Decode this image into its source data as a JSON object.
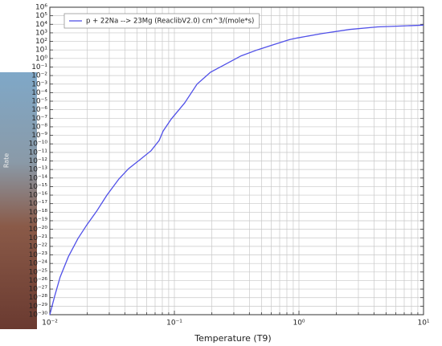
{
  "chart_data": {
    "type": "line",
    "xlabel": "Temperature (T9)",
    "ylabel": "Rate",
    "xlog": true,
    "ylog": true,
    "grid": true,
    "legend": "upper left",
    "xlim": [
      0.01,
      10
    ],
    "ylim": [
      1e-30,
      1000000.0
    ],
    "xticks": [
      {
        "value": 0.01,
        "label": "10⁻²"
      },
      {
        "value": 0.1,
        "label": "10⁻¹"
      },
      {
        "value": 1,
        "label": "10⁰"
      },
      {
        "value": 10,
        "label": "10¹"
      }
    ],
    "yticks": [
      {
        "value": 1e-30,
        "label": "10⁻³⁰"
      },
      {
        "value": 1e-29,
        "label": "10⁻²⁹"
      },
      {
        "value": 1e-28,
        "label": "10⁻²⁸"
      },
      {
        "value": 1e-27,
        "label": "10⁻²⁷"
      },
      {
        "value": 1e-26,
        "label": "10⁻²⁶"
      },
      {
        "value": 1e-25,
        "label": "10⁻²⁵"
      },
      {
        "value": 1e-24,
        "label": "10⁻²⁴"
      },
      {
        "value": 1e-23,
        "label": "10⁻²³"
      },
      {
        "value": 1e-22,
        "label": "10⁻²²"
      },
      {
        "value": 1e-21,
        "label": "10⁻²¹"
      },
      {
        "value": 1e-20,
        "label": "10⁻²⁰"
      },
      {
        "value": 1e-19,
        "label": "10⁻¹⁹"
      },
      {
        "value": 1e-18,
        "label": "10⁻¹⁸"
      },
      {
        "value": 1e-17,
        "label": "10⁻¹⁷"
      },
      {
        "value": 1e-16,
        "label": "10⁻¹⁶"
      },
      {
        "value": 1e-15,
        "label": "10⁻¹⁵"
      },
      {
        "value": 1e-14,
        "label": "10⁻¹⁴"
      },
      {
        "value": 1e-13,
        "label": "10⁻¹³"
      },
      {
        "value": 1e-12,
        "label": "10⁻¹²"
      },
      {
        "value": 1e-11,
        "label": "10⁻¹¹"
      },
      {
        "value": 1e-10,
        "label": "10⁻¹⁰"
      },
      {
        "value": 1e-09,
        "label": "10⁻⁹"
      },
      {
        "value": 1e-08,
        "label": "10⁻⁸"
      },
      {
        "value": 1e-07,
        "label": "10⁻⁷"
      },
      {
        "value": 1e-06,
        "label": "10⁻⁶"
      },
      {
        "value": 1e-05,
        "label": "10⁻⁵"
      },
      {
        "value": 0.0001,
        "label": "10⁻⁴"
      },
      {
        "value": 0.001,
        "label": "10⁻³"
      },
      {
        "value": 0.01,
        "label": "10⁻²"
      },
      {
        "value": 0.1,
        "label": "10⁻¹"
      },
      {
        "value": 1,
        "label": "10⁰"
      },
      {
        "value": 10,
        "label": "10¹"
      },
      {
        "value": 100,
        "label": "10²"
      },
      {
        "value": 1000,
        "label": "10³"
      },
      {
        "value": 10000,
        "label": "10⁴"
      },
      {
        "value": 100000,
        "label": "10⁵"
      },
      {
        "value": 1000000,
        "label": "10⁶"
      }
    ],
    "x": [
      0.01,
      0.0109,
      0.0121,
      0.0141,
      0.0168,
      0.0198,
      0.0237,
      0.0287,
      0.0359,
      0.0429,
      0.0536,
      0.065,
      0.0754,
      0.0812,
      0.0942,
      0.121,
      0.152,
      0.195,
      0.255,
      0.343,
      0.462,
      0.622,
      0.838,
      0.97,
      1.52,
      2.55,
      4.28,
      6.7,
      10
    ],
    "series": [
      {
        "name": "p + 22Na --> 23Mg (ReaclibV2.0) cm^3/(mole*s)",
        "color": "#5050e8",
        "values": [
          1e-30,
          1.26e-28,
          2.5e-26,
          6.3e-24,
          7.9e-22,
          3.2e-20,
          1.26e-18,
          1e-16,
          7.9e-15,
          1.26e-13,
          1.6e-12,
          1.6e-11,
          2.5e-10,
          3.2e-09,
          7.9e-08,
          6.3e-06,
          0.001,
          0.025,
          0.2,
          2,
          10,
          40,
          160,
          250,
          800,
          2500,
          5000,
          6300,
          8000
        ]
      }
    ]
  }
}
